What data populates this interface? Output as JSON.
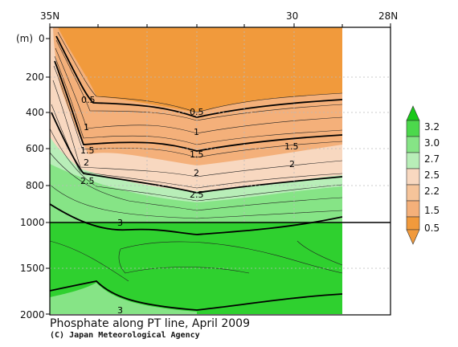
{
  "chart_data": {
    "type": "contour",
    "title": "Phosphate along PT line, April 2009",
    "credit": "(C) Japan Meteorological Agency",
    "x_axis": {
      "ticks": [
        "35N",
        "30",
        "28N"
      ],
      "tick_lat": [
        35,
        30,
        28
      ],
      "range_lat": [
        35,
        28
      ]
    },
    "y_axis": {
      "unit": "(m)",
      "upper_ticks": [
        0,
        200,
        400,
        600,
        800,
        1000
      ],
      "lower_ticks": [
        1500,
        2000
      ],
      "upper_range": [
        0,
        1000
      ],
      "lower_range": [
        1000,
        2000
      ]
    },
    "colorbar": {
      "labels": [
        "3.2",
        "3.0",
        "2.7",
        "2.5",
        "2.2",
        "1.5",
        "0.5"
      ],
      "colors_top_to_bottom": [
        "#18c818",
        "#4cd84c",
        "#86e486",
        "#b8eeb8",
        "#f8d8c0",
        "#f4b07a",
        "#f19a3c"
      ]
    },
    "contour_labels": [
      "0.5",
      "0.5",
      "1",
      "1",
      "1.5",
      "1.5",
      "1.5",
      "2",
      "2",
      "2",
      "2.5",
      "2.5",
      "3",
      "3"
    ],
    "data_extent_lat": [
      35,
      29
    ]
  }
}
